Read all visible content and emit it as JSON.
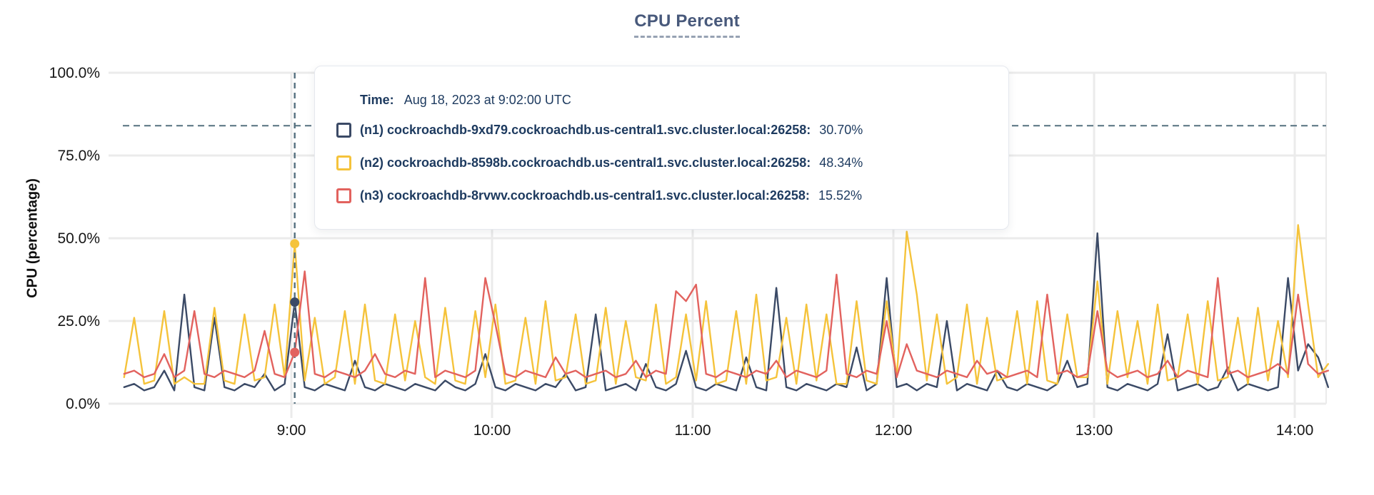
{
  "title": "CPU Percent",
  "tooltip": {
    "time_label": "Time:",
    "time_value": "Aug 18, 2023 at 9:02:00 UTC",
    "rows": [
      {
        "label": "(n1) cockroachdb-9xd79.cockroachdb.us-central1.svc.cluster.local:26258:",
        "value": "30.70%"
      },
      {
        "label": "(n2) cockroachdb-8598b.cockroachdb.us-central1.svc.cluster.local:26258:",
        "value": "48.34%"
      },
      {
        "label": "(n3) cockroachdb-8rvwv.cockroachdb.us-central1.svc.cluster.local:26258:",
        "value": "15.52%"
      }
    ]
  },
  "chart_data": {
    "type": "line",
    "title": "CPU Percent",
    "xlabel": "",
    "ylabel": "CPU (percentage)",
    "ylim": [
      0,
      100
    ],
    "grid": true,
    "legend_position": "tooltip-overlay",
    "y_ticks": [
      {
        "value": 0,
        "label": "0.0%"
      },
      {
        "value": 25,
        "label": "25.0%"
      },
      {
        "value": 50,
        "label": "50.0%"
      },
      {
        "value": 75,
        "label": "75.0%"
      },
      {
        "value": 100,
        "label": "100.0%"
      }
    ],
    "x_ticks": [
      {
        "minute": 540,
        "label": "9:00"
      },
      {
        "minute": 600,
        "label": "10:00"
      },
      {
        "minute": 660,
        "label": "11:00"
      },
      {
        "minute": 720,
        "label": "12:00"
      },
      {
        "minute": 780,
        "label": "13:00"
      },
      {
        "minute": 840,
        "label": "14:00"
      }
    ],
    "x_start_minute": 490,
    "x_step_minute": 3,
    "reference_line_pct": 84,
    "hover": {
      "minute": 541,
      "time": "Aug 18, 2023 at 9:02:00 UTC",
      "crosshair_color": "#55707f",
      "points": [
        {
          "series_index": 1,
          "pct": 48.34
        },
        {
          "series_index": 0,
          "pct": 30.7
        },
        {
          "series_index": 2,
          "pct": 15.52
        }
      ]
    },
    "series": [
      {
        "name": "(n1) cockroachdb-9xd79.cockroachdb.us-central1.svc.cluster.local:26258",
        "node": "n1",
        "color": "#3b4a66",
        "hover_value_pct": 30.7,
        "values": [
          5,
          6,
          4,
          5,
          10,
          4,
          33,
          5,
          4,
          26,
          5,
          4,
          6,
          5,
          9,
          4,
          6,
          30.7,
          5,
          4,
          6,
          5,
          4,
          13,
          5,
          4,
          6,
          5,
          4,
          6,
          5,
          4,
          7,
          5,
          4,
          6,
          15,
          5,
          4,
          6,
          5,
          4,
          6,
          5,
          9,
          4,
          5,
          27,
          4,
          5,
          6,
          4,
          12,
          5,
          4,
          6,
          16,
          5,
          4,
          6,
          5,
          4,
          14,
          5,
          4,
          35,
          5,
          4,
          6,
          5,
          4,
          6,
          5,
          17,
          4,
          6,
          38,
          5,
          6,
          4,
          6,
          5,
          25,
          4,
          6,
          5,
          4,
          10,
          5,
          4,
          6,
          5,
          4,
          6,
          13,
          5,
          6,
          51.5,
          5,
          4,
          6,
          5,
          4,
          6,
          21,
          4,
          5,
          6,
          4,
          5,
          11,
          4,
          6,
          5,
          4,
          5,
          38,
          10,
          18,
          14,
          5
        ]
      },
      {
        "name": "(n2) cockroachdb-8598b.cockroachdb.us-central1.svc.cluster.local:26258",
        "node": "n2",
        "color": "#f5c33b",
        "hover_value_pct": 48.34,
        "values": [
          8,
          26,
          6,
          7,
          28,
          6,
          8,
          6,
          6,
          29,
          7,
          6,
          27,
          7,
          8,
          30,
          8,
          48.3,
          7,
          26,
          6,
          8,
          28,
          6,
          30,
          7,
          6,
          27,
          7,
          25,
          8,
          6,
          29,
          7,
          6,
          28,
          8,
          30,
          6,
          7,
          26,
          6,
          31,
          7,
          8,
          27,
          6,
          7,
          29,
          6,
          25,
          8,
          7,
          30,
          6,
          8,
          27,
          7,
          31,
          6,
          7,
          28,
          6,
          33,
          7,
          8,
          26,
          6,
          30,
          7,
          27,
          6,
          6,
          31,
          7,
          6,
          31,
          8,
          52,
          33,
          7,
          27,
          6,
          8,
          30,
          6,
          26,
          7,
          8,
          28,
          6,
          31,
          7,
          6,
          27,
          8,
          8,
          37,
          6,
          28,
          8,
          25,
          6,
          30,
          7,
          8,
          27,
          6,
          31,
          7,
          8,
          26,
          6,
          29,
          7,
          25,
          8,
          54,
          30,
          8,
          12
        ]
      },
      {
        "name": "(n3) cockroachdb-8rvwv.cockroachdb.us-central1.svc.cluster.local:26258",
        "node": "n3",
        "color": "#e2625e",
        "hover_value_pct": 15.52,
        "values": [
          9,
          10,
          8,
          9,
          15,
          8,
          10,
          28,
          9,
          8,
          10,
          9,
          8,
          10,
          22,
          9,
          8,
          15.5,
          40,
          9,
          8,
          10,
          9,
          8,
          10,
          15,
          9,
          8,
          10,
          9,
          38,
          8,
          10,
          9,
          8,
          10,
          38,
          24,
          9,
          8,
          10,
          9,
          8,
          14,
          9,
          10,
          8,
          9,
          10,
          8,
          9,
          13,
          8,
          10,
          9,
          34,
          31,
          36,
          9,
          8,
          10,
          9,
          8,
          10,
          9,
          13,
          8,
          10,
          9,
          8,
          10,
          39,
          9,
          8,
          10,
          9,
          25,
          8,
          18,
          10,
          9,
          8,
          10,
          9,
          8,
          13,
          9,
          10,
          8,
          9,
          10,
          8,
          33,
          9,
          10,
          8,
          9,
          28,
          10,
          8,
          9,
          10,
          8,
          9,
          13,
          8,
          10,
          9,
          8,
          38,
          9,
          10,
          8,
          9,
          10,
          12,
          9,
          33,
          12,
          9,
          10
        ]
      }
    ]
  }
}
